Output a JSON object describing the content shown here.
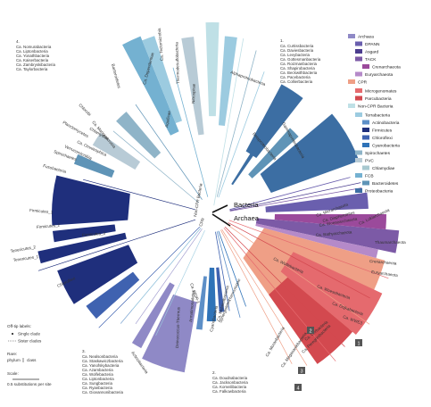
{
  "center": {
    "bacteria_label": "Bacteria",
    "archaea_label": "Archaea",
    "cpr_label": "CPR",
    "non_cpr_label": "Non-CPR Bacteria"
  },
  "colors": {
    "archaea": "#8f89c6",
    "dpann": "#6a5fae",
    "asgard": "#4b3d8e",
    "tack": "#7c5aa6",
    "crenarchaeota": "#9b4a9b",
    "euryarchaeota": "#b58ac9",
    "cpr": "#ef9f86",
    "microgenomates": "#e56a6e",
    "parcubacteria": "#d3494f",
    "non_cpr": "#bfe0e6",
    "terrabacteria": "#9ccbe0",
    "actinobacteria": "#5d8fc7",
    "firmicutes": "#1f2f7c",
    "chloroflexi": "#3f62b0",
    "cyanobacteria": "#2f73b8",
    "spirochaetes": "#8fb4c8",
    "pvc": "#b8cbd6",
    "chlamydiae": "#a8c9d0",
    "fcb": "#74b1d1",
    "bacteroidetes": "#5f94b7",
    "proteobacteria": "#3c6ea3"
  },
  "legend": [
    {
      "label": "Archaea",
      "level": 0,
      "color": "#8f89c6"
    },
    {
      "label": "DPANN",
      "level": 1,
      "color": "#6a5fae"
    },
    {
      "label": "Asgard",
      "level": 1,
      "color": "#4b3d8e"
    },
    {
      "label": "TACK",
      "level": 1,
      "color": "#7c5aa6"
    },
    {
      "label": "Crenarchaeota",
      "level": 2,
      "color": "#9b4a9b"
    },
    {
      "label": "Euryarchaeota",
      "level": 1,
      "color": "#b58ac9"
    },
    {
      "label": "CPR",
      "level": 0,
      "color": "#ef9f86"
    },
    {
      "label": "Microgenomates",
      "level": 1,
      "color": "#e56a6e"
    },
    {
      "label": "Parcubacteria",
      "level": 1,
      "color": "#d3494f"
    },
    {
      "label": "Non-CPR Bacteria",
      "level": 0,
      "color": "#bfe0e6"
    },
    {
      "label": "Terrabacteria",
      "level": 1,
      "color": "#9ccbe0"
    },
    {
      "label": "Actinobacteria",
      "level": 2,
      "color": "#5d8fc7"
    },
    {
      "label": "Firmicutes",
      "level": 2,
      "color": "#1f2f7c"
    },
    {
      "label": "Chloroflexi",
      "level": 2,
      "color": "#3f62b0"
    },
    {
      "label": "Cyanobacteria",
      "level": 2,
      "color": "#2f73b8"
    },
    {
      "label": "Spirochaetes",
      "level": 1,
      "color": "#8fb4c8"
    },
    {
      "label": "PVC",
      "level": 1,
      "color": "#b8cbd6"
    },
    {
      "label": "Chlamydiae",
      "level": 2,
      "color": "#a8c9d0"
    },
    {
      "label": "FCB",
      "level": 1,
      "color": "#74b1d1"
    },
    {
      "label": "Bacteroidetes",
      "level": 2,
      "color": "#5f94b7"
    },
    {
      "label": "Proteobacteria",
      "level": 1,
      "color": "#3c6ea3"
    }
  ],
  "blocks": [
    {
      "number": "4.",
      "lines": [
        "Ca. Nomurabacteria",
        "Ca. Liptonbacteria",
        "Ca. Yonathbacteria",
        "Ca. Kaiserbacteria",
        "Ca. Zambryskibacteria",
        "Ca. Taylorbacteria"
      ]
    },
    {
      "number": "1.",
      "lines": [
        "Ca. Curtissbacteria",
        "Ca. Daviesbacteria",
        "Ca. Levybacteria",
        "Ca. Gottesmanbacteria",
        "Ca. Roizmanbacteria",
        "Ca. Shapirobacteria",
        "Ca. Beckwithbacteria",
        "Ca. Pacebacteria",
        "Ca. Collierbacteria"
      ]
    },
    {
      "number": "3.",
      "lines": [
        "Ca. Nealsonbacteria",
        "Ca. Staskawiczbacteria",
        "Ca. Yanofskybacteria",
        "Ca. Azambacteria",
        "Ca. Wolfebacteria",
        "Ca. Liptonbacteria",
        "Ca. Sungbacteria",
        "Ca. Ryanbacteria",
        "Ca. Giovannonibacteria"
      ]
    },
    {
      "number": "2.",
      "lines": [
        "Ca. Doudnabacteria",
        "Ca. Jacksonbacteria",
        "Ca. Komeilibacteria",
        "Ca. Falkowbacteria"
      ]
    }
  ],
  "tip_key": {
    "title": "Off-tip labels:",
    "single": "Single clade",
    "sister": "Sister clades",
    "rare_title": "Rare:",
    "rare_phylum": "phylum",
    "rare_class": "class",
    "scale_title": "Scale:",
    "scale_value": "0.5 substitutions per site"
  },
  "clades": [
    {
      "label": "Alphaproteobacteria"
    },
    {
      "label": "Gammaproteobacteria"
    },
    {
      "label": "Betaproteobacteria"
    },
    {
      "label": "Nitrospirae"
    },
    {
      "label": "Thermodesulfobacteria"
    },
    {
      "label": "Ca. Tectomicrobia"
    },
    {
      "label": "Aquificae"
    },
    {
      "label": "Ca. Dependentiae"
    },
    {
      "label": "Bacteroidetes"
    },
    {
      "label": "Ca. Marinimicrobia"
    },
    {
      "label": "Chlorobi"
    },
    {
      "label": "Planctomycetes"
    },
    {
      "label": "Chlamydiae"
    },
    {
      "label": "Ca. Omnitrophica"
    },
    {
      "label": "Verrucomicrobia"
    },
    {
      "label": "Spirochaetes"
    },
    {
      "label": "Fusobacteria"
    },
    {
      "label": "Firmicutes_1"
    },
    {
      "label": "Firmicutes_2"
    },
    {
      "label": "Firmicutes_3"
    },
    {
      "label": "Tenericutes_1"
    },
    {
      "label": "Tenericutes_2"
    },
    {
      "label": "Chloroflexi"
    },
    {
      "label": "Actinobacteria"
    },
    {
      "label": "Deinococcus-Thermus"
    },
    {
      "label": "Armatimonadetes"
    },
    {
      "label": "Cyanobacteria"
    },
    {
      "label": "Ca. Melainabacteria"
    },
    {
      "label": "Ca. WOR-1"
    },
    {
      "label": "Thermotogae"
    },
    {
      "label": "Synergistetes"
    },
    {
      "label": "Ca. Woesebacteria"
    },
    {
      "label": "Ca. Dojkabacteria"
    },
    {
      "label": "Ca. WWE3"
    },
    {
      "label": "Ca. Wolfebacteria"
    },
    {
      "label": "Ca. Moranbacteria"
    },
    {
      "label": "Ca. Magasanikbacteria"
    },
    {
      "label": "Ca. Uhrbacteria"
    },
    {
      "label": "Ca. Peregrinibacteria"
    },
    {
      "label": "Ca. Woesearchaeota"
    },
    {
      "label": "Ca. Diapherotrites"
    },
    {
      "label": "Ca. Micrarchaeota"
    },
    {
      "label": "Ca. Lokiarchaeota"
    },
    {
      "label": "Ca. Bathyarchaeota"
    },
    {
      "label": "Thaumarchaeota"
    },
    {
      "label": "Crenarchaeota"
    },
    {
      "label": "Euryarchaeota"
    }
  ],
  "badges": [
    "1",
    "2",
    "3",
    "4"
  ]
}
